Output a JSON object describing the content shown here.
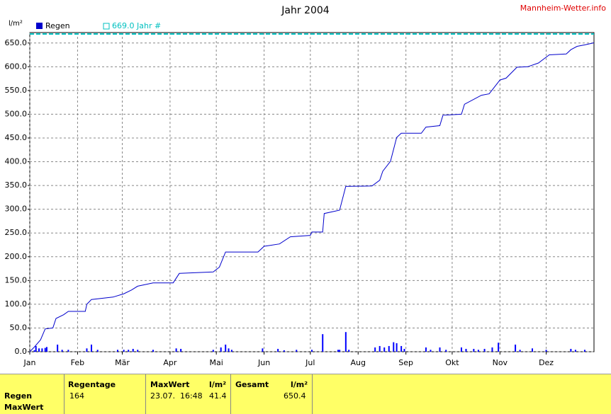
{
  "site": "Mannheim-Wetter.info",
  "chart_data": {
    "type": "bar-line",
    "title": "Jahr 2004",
    "y_label": "l/m²",
    "xlim": [
      0,
      366
    ],
    "xticks": [
      {
        "value": 0,
        "label": "Jan"
      },
      {
        "value": 31,
        "label": "Feb"
      },
      {
        "value": 60,
        "label": "Mär"
      },
      {
        "value": 91,
        "label": "Apr"
      },
      {
        "value": 121,
        "label": "Mai"
      },
      {
        "value": 152,
        "label": "Jun"
      },
      {
        "value": 182,
        "label": "Jul"
      },
      {
        "value": 213,
        "label": "Aug"
      },
      {
        "value": 244,
        "label": "Sep"
      },
      {
        "value": 274,
        "label": "Okt"
      },
      {
        "value": 305,
        "label": "Nov"
      },
      {
        "value": 335,
        "label": "Dez"
      }
    ],
    "ylim": [
      0,
      672
    ],
    "yticks": [
      {
        "value": 0,
        "label": "0.0"
      },
      {
        "value": 50,
        "label": "50.0"
      },
      {
        "value": 100,
        "label": "100.0"
      },
      {
        "value": 150,
        "label": "150.0"
      },
      {
        "value": 200,
        "label": "200.0"
      },
      {
        "value": 250,
        "label": "250.0"
      },
      {
        "value": 300,
        "label": "300.0"
      },
      {
        "value": 350,
        "label": "350.0"
      },
      {
        "value": 400,
        "label": "400.0"
      },
      {
        "value": 450,
        "label": "450.0"
      },
      {
        "value": 500,
        "label": "500.0"
      },
      {
        "value": 550,
        "label": "550.0"
      },
      {
        "value": 600,
        "label": "600.0"
      },
      {
        "value": 650,
        "label": "650.0"
      }
    ],
    "grid": true,
    "series": [
      {
        "name": "Regen",
        "color": "#0000ff",
        "x": [
          3,
          4,
          6,
          8,
          10,
          11,
          18,
          21,
          25,
          37,
          40,
          44,
          57,
          61,
          64,
          67,
          70,
          80,
          95,
          98,
          119,
          124,
          127,
          129,
          131,
          151,
          161,
          165,
          173,
          183,
          190,
          200,
          201,
          205,
          207,
          224,
          227,
          230,
          233,
          236,
          238,
          241,
          243,
          257,
          260,
          266,
          270,
          280,
          283,
          288,
          291,
          295,
          300,
          304,
          315,
          318,
          326,
          335,
          351,
          354,
          360
        ],
        "values": [
          3,
          12,
          7,
          7,
          8,
          10,
          15,
          4,
          4,
          7,
          15,
          4,
          4,
          4,
          4,
          6,
          4,
          4,
          7,
          6,
          4,
          9,
          15,
          7,
          4,
          7,
          6,
          3,
          4,
          4,
          37,
          4,
          4,
          41.4,
          4,
          9,
          12,
          9,
          12,
          20,
          18,
          12,
          6,
          9,
          4,
          9,
          4,
          9,
          6,
          6,
          4,
          6,
          9,
          19,
          15,
          4,
          7,
          4,
          6,
          4,
          4
        ]
      }
    ],
    "cumulative": {
      "color": "#0000cc",
      "x": [
        0,
        3,
        7,
        10,
        15,
        17,
        22,
        25,
        36,
        37,
        40,
        54,
        61,
        66,
        70,
        80,
        93,
        97,
        119,
        123,
        127,
        148,
        152,
        162,
        169,
        182,
        183,
        190,
        191,
        201,
        205,
        222,
        227,
        229,
        234,
        238,
        241,
        254,
        257,
        266,
        268,
        280,
        282,
        293,
        298,
        305,
        309,
        316,
        323,
        330,
        337,
        348,
        351,
        355,
        360,
        366
      ],
      "values": [
        0,
        10,
        25,
        48,
        50,
        70,
        78,
        85,
        85,
        100,
        110,
        115,
        122,
        130,
        138,
        145,
        145,
        165,
        168,
        178,
        210,
        210,
        222,
        227,
        242,
        245,
        252,
        252,
        291,
        298,
        348,
        349,
        361,
        380,
        401,
        451,
        460,
        460,
        473,
        476,
        498,
        500,
        521,
        540,
        543,
        572,
        576,
        599,
        600,
        608,
        625,
        627,
        636,
        643,
        646,
        650.4
      ]
    },
    "reference": {
      "label": "669.0 Jahr #",
      "value": 669.0,
      "color": "#00c0c0"
    }
  },
  "summary": {
    "row_labels": [
      "Regen",
      "MaxWert"
    ],
    "regentage": {
      "header": "Regentage",
      "value": 164
    },
    "maxwert": {
      "header": "MaxWert",
      "unit": "l/m²",
      "time": "23.07.  16:48",
      "value": 41.4
    },
    "gesamt": {
      "header": "Gesamt",
      "unit": "l/m²",
      "value": 650.4
    }
  }
}
